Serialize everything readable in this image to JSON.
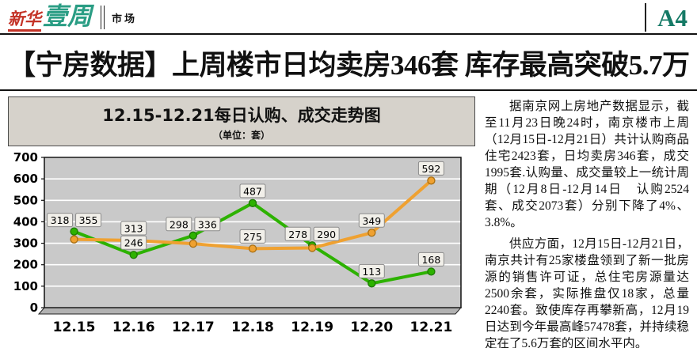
{
  "header": {
    "logo_part1": "新华",
    "logo_part2": "壹周",
    "section": "市场",
    "page_number": "A4"
  },
  "headline": "【宁房数据】上周楼市日均卖房346套 库存最高突破5.7万",
  "chart": {
    "title": "12.15-12.21每日认购、成交走势图",
    "subtitle": "（单位：套）"
  },
  "chart_data": {
    "type": "line",
    "title": "12.15-12.21每日认购、成交走势图",
    "unit_note": "（单位：套）",
    "categories": [
      "12.15",
      "12.16",
      "12.17",
      "12.18",
      "12.19",
      "12.20",
      "12.21"
    ],
    "series": [
      {
        "name": "认购",
        "color": "#EFA131",
        "marker_edge": "#a96f12",
        "values": [
          318,
          313,
          298,
          275,
          278,
          349,
          592
        ]
      },
      {
        "name": "成交",
        "color": "#2DB200",
        "marker_edge": "#1c7a00",
        "values": [
          355,
          246,
          336,
          487,
          290,
          113,
          168
        ]
      }
    ],
    "ylim": [
      0,
      700
    ],
    "ytick_step": 100,
    "grid": true,
    "legend_position": "none",
    "plot_bg": "#c9c9c9",
    "label_box_bg": "#f1efe9"
  },
  "article": {
    "paragraphs": [
      "据南京网上房地产数据显示，截至11月23日晚24时，南京楼市上周（12月15日-12月21日）共计认购商品住宅2423套，日均卖房346套，成交1995套.认购量、成交量较上一统计周期（12月8日-12月14日　认购2524套、成交2073套）分别下降了4%、3.8%。",
      "供应方面，12月15日-12月21日，南京共计有25家楼盘领到了新一批房源的销售许可证，总住宅房源量达2500余套，实际推盘仅18家，总量2240套。致使库存再攀新高，12月19日达到今年最高峰57478套，并持续稳定在了5.6万套的区间水平内。"
    ]
  },
  "colors": {
    "accent_red": "#c43327",
    "accent_teal": "#2a9d84",
    "page_number_green": "#157a66"
  }
}
